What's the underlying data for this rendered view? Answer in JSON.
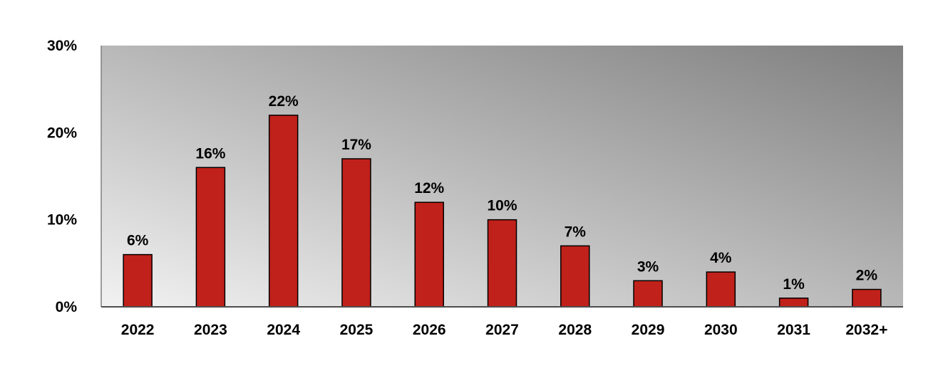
{
  "chart_data": {
    "type": "bar",
    "title": "",
    "xlabel": "",
    "ylabel": "",
    "categories": [
      "2022",
      "2023",
      "2024",
      "2025",
      "2026",
      "2027",
      "2028",
      "2029",
      "2030",
      "2031",
      "2032+"
    ],
    "values": [
      6,
      16,
      22,
      17,
      12,
      10,
      7,
      3,
      4,
      1,
      2
    ],
    "data_labels": [
      "6%",
      "16%",
      "22%",
      "17%",
      "12%",
      "10%",
      "7%",
      "3%",
      "4%",
      "1%",
      "2%"
    ],
    "ylim": [
      0,
      30
    ],
    "yticks": [
      0,
      10,
      20,
      30
    ],
    "ytick_labels": [
      "0%",
      "10%",
      "20%",
      "30%"
    ],
    "grid": false,
    "legend": "none",
    "colors": {
      "bar": "#c0211a",
      "bar_outline": "#000000",
      "plot_bg_light": "#f2f2f2",
      "plot_bg_dark": "#7f7f7f"
    }
  }
}
